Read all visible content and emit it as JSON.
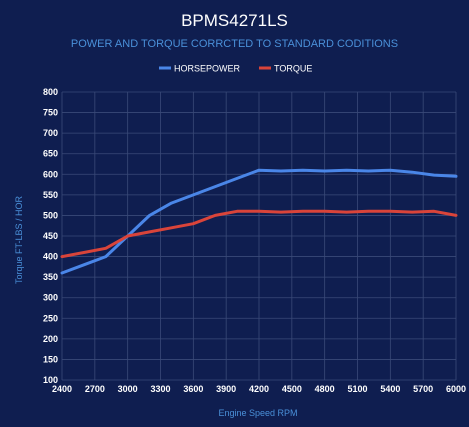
{
  "chart_data": {
    "type": "line",
    "title": "BPMS4271LS",
    "subtitle": "POWER AND TORQUE CORRCTED TO STANDARD CODITIONS",
    "xlabel": "Engine Speed RPM",
    "ylabel": "Torque FT-LBS / HOR",
    "x": [
      2400,
      2600,
      2800,
      3000,
      3200,
      3400,
      3600,
      3800,
      4000,
      4200,
      4400,
      4600,
      4800,
      5000,
      5200,
      5400,
      5600,
      5800,
      6000
    ],
    "x_ticks": [
      "2400",
      "2700",
      "3000",
      "3300",
      "3600",
      "3900",
      "4200",
      "4500",
      "4800",
      "5100",
      "5400",
      "5700",
      "6000"
    ],
    "y_ticks": [
      "100",
      "150",
      "200",
      "250",
      "300",
      "350",
      "400",
      "450",
      "500",
      "550",
      "600",
      "650",
      "700",
      "750",
      "800"
    ],
    "xlim": [
      2400,
      6000
    ],
    "ylim": [
      100,
      800
    ],
    "grid": true,
    "legend_position": "top",
    "series": [
      {
        "name": "HORSEPOWER",
        "color": "#4a86e8",
        "values": [
          360,
          380,
          400,
          450,
          500,
          530,
          550,
          570,
          590,
          610,
          608,
          610,
          608,
          610,
          608,
          610,
          605,
          598,
          595
        ]
      },
      {
        "name": "TORQUE",
        "color": "#d9443a",
        "values": [
          400,
          410,
          420,
          450,
          460,
          470,
          480,
          500,
          510,
          510,
          508,
          510,
          510,
          508,
          510,
          510,
          508,
          510,
          500
        ]
      }
    ]
  }
}
